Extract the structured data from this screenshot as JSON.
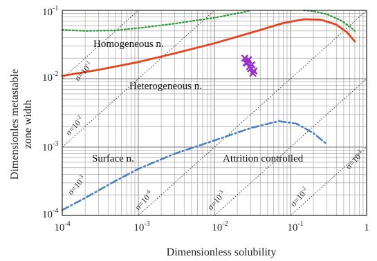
{
  "chart_data": {
    "type": "line",
    "xlabel": "Dimensionless solubility",
    "ylabel": "Dimensionles metastable zone width",
    "xscale": "log",
    "yscale": "log",
    "xlim": [
      0.0001,
      1
    ],
    "ylim": [
      0.0001,
      0.1
    ],
    "grid": true,
    "x_tick_labels": [
      "10-4",
      "10-3",
      "10-2",
      "10-1",
      "1"
    ],
    "y_tick_labels": [
      "10-1",
      "10-2",
      "10-3",
      "10-4"
    ],
    "region_labels": {
      "homogeneous": "Homogeneous n.",
      "heterogeneous": "Heterogeneous n.",
      "surface": "Surface n.",
      "attrition": "Attrition controlled"
    },
    "sigma_labels": [
      "σ=10",
      "σ=10",
      "σ=10",
      "σ=10",
      "σ=10",
      "σ=10",
      "σ=10"
    ],
    "sigma_superscripts": [
      "-1",
      "-2",
      "-3",
      "-4",
      "-3",
      "-2",
      "-1"
    ],
    "series": [
      {
        "style": "dotted",
        "color": "#2a9a3a",
        "x": [
          0.0001,
          0.0002,
          0.0005,
          0.001,
          0.003,
          0.01,
          0.025,
          0.03
        ],
        "y": [
          0.052,
          0.05,
          0.051,
          0.055,
          0.064,
          0.078,
          0.095,
          0.1
        ]
      },
      {
        "style": "dotted",
        "color": "#2a9a3a",
        "x": [
          0.15,
          0.2,
          0.3,
          0.45,
          0.6,
          0.7
        ],
        "y": [
          0.1,
          0.097,
          0.088,
          0.072,
          0.058,
          0.05
        ]
      },
      {
        "style": "solid",
        "color": "#e4431c",
        "x": [
          0.0001,
          0.0003,
          0.001,
          0.003,
          0.01,
          0.03,
          0.08,
          0.15,
          0.25,
          0.4,
          0.55,
          0.7
        ],
        "y": [
          0.011,
          0.0135,
          0.0175,
          0.0235,
          0.033,
          0.047,
          0.065,
          0.074,
          0.073,
          0.062,
          0.048,
          0.035
        ]
      },
      {
        "style": "dash-dot",
        "color": "#4a7fc4",
        "x": [
          0.0001,
          0.0002,
          0.0005,
          0.001,
          0.003,
          0.01,
          0.03,
          0.07,
          0.12,
          0.2,
          0.3
        ],
        "y": [
          0.00012,
          0.00018,
          0.00032,
          0.00048,
          0.0008,
          0.00125,
          0.0019,
          0.0024,
          0.0022,
          0.0016,
          0.0011
        ]
      }
    ],
    "markers": {
      "color": "#9b30c8",
      "x": [
        0.025,
        0.027,
        0.029,
        0.031,
        0.033,
        0.028,
        0.03,
        0.026,
        0.032
      ],
      "y": [
        0.02,
        0.017,
        0.015,
        0.016,
        0.013,
        0.019,
        0.014,
        0.017,
        0.012
      ]
    }
  }
}
